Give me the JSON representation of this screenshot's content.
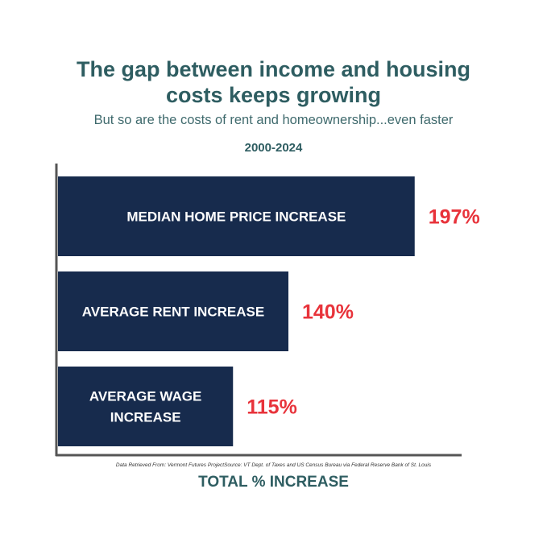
{
  "chart_data": {
    "type": "bar",
    "orientation": "horizontal",
    "title": "The gap between income and housing costs keeps growing",
    "subtitle": "But so are the costs of rent and homeownership...even faster",
    "period": "2000-2024",
    "categories": [
      "MEDIAN HOME PRICE INCREASE",
      "AVERAGE RENT INCREASE",
      "AVERAGE WAGE INCREASE"
    ],
    "values": [
      197,
      140,
      115
    ],
    "value_labels": [
      "197%",
      "140%",
      "115%"
    ],
    "xlabel": "TOTAL % INCREASE",
    "source": "Data Retrieved From: Vermont Futures ProjectSource: VT Dept. of Taxes and US Census Bureau via Federal Reserve Bank of St. Louis",
    "colors": {
      "bar": "#172b4d",
      "value_label": "#e8333b",
      "title": "#2e5d61",
      "axis": "#555555"
    }
  }
}
